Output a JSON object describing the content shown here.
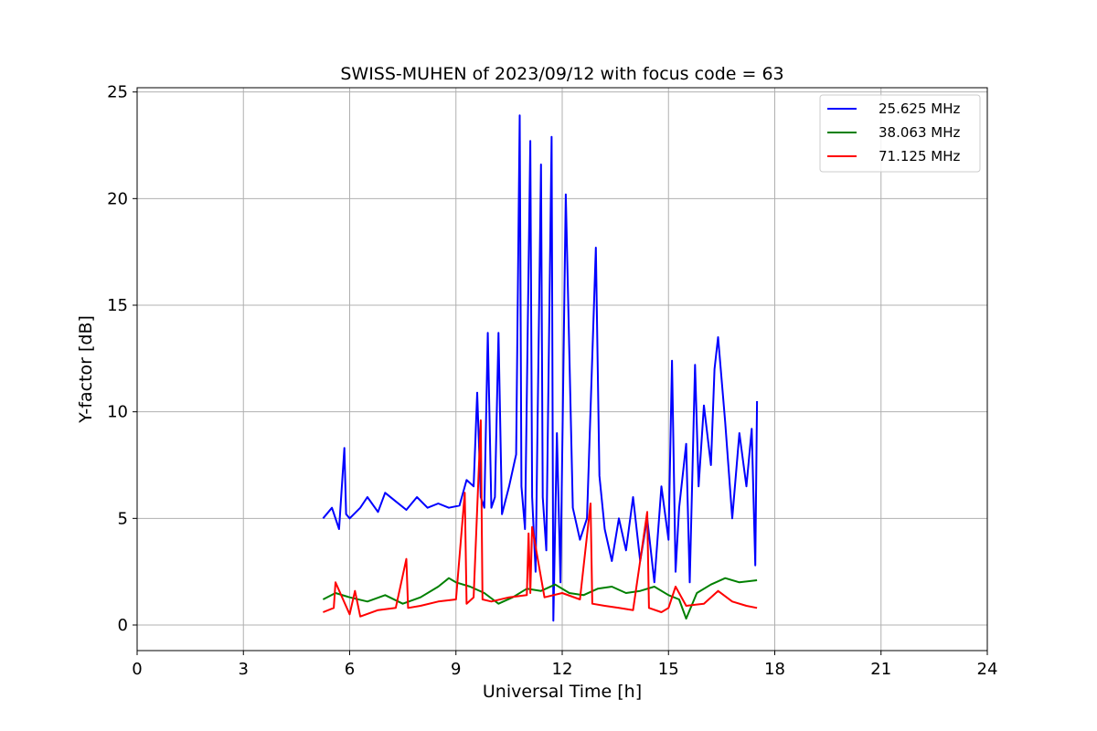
{
  "chart_data": {
    "type": "line",
    "title": "SWISS-MUHEN of 2023/09/12 with focus code = 63",
    "xlabel": "Universal Time [h]",
    "ylabel": "Y-factor [dB]",
    "xlim": [
      0,
      24
    ],
    "ylim": [
      -1.2,
      25.2
    ],
    "xticks": [
      0,
      3,
      6,
      9,
      12,
      15,
      18,
      21,
      24
    ],
    "yticks": [
      0,
      5,
      10,
      15,
      20,
      25
    ],
    "grid": true,
    "legend_position": "top-right",
    "series": [
      {
        "name": "25.625 MHz",
        "color": "#0000ff",
        "x": [
          5.25,
          5.5,
          5.7,
          5.85,
          5.9,
          6.0,
          6.3,
          6.5,
          6.8,
          7.0,
          7.3,
          7.6,
          7.9,
          8.2,
          8.5,
          8.8,
          9.1,
          9.3,
          9.5,
          9.6,
          9.7,
          9.8,
          9.9,
          10.0,
          10.1,
          10.2,
          10.3,
          10.5,
          10.7,
          10.8,
          10.85,
          10.95,
          11.1,
          11.15,
          11.25,
          11.4,
          11.45,
          11.55,
          11.7,
          11.75,
          11.85,
          11.95,
          12.1,
          12.3,
          12.5,
          12.7,
          12.95,
          13.05,
          13.2,
          13.4,
          13.6,
          13.8,
          14.0,
          14.2,
          14.4,
          14.6,
          14.8,
          15.0,
          15.1,
          15.2,
          15.3,
          15.5,
          15.6,
          15.75,
          15.85,
          16.0,
          16.2,
          16.3,
          16.4,
          16.6,
          16.8,
          17.0,
          17.2,
          17.35,
          17.45,
          17.5
        ],
        "values": [
          5.0,
          5.5,
          4.5,
          8.3,
          5.2,
          5.0,
          5.5,
          6.0,
          5.3,
          6.2,
          5.8,
          5.4,
          6.0,
          5.5,
          5.7,
          5.5,
          5.6,
          6.8,
          6.5,
          10.9,
          6.0,
          5.5,
          13.7,
          5.5,
          6.0,
          13.7,
          5.2,
          6.5,
          8.0,
          23.9,
          6.5,
          4.5,
          22.7,
          6.0,
          2.5,
          21.6,
          6.0,
          3.5,
          22.9,
          0.2,
          9.0,
          2.0,
          20.2,
          5.5,
          4.0,
          5.0,
          17.7,
          7.0,
          4.5,
          3.0,
          5.0,
          3.5,
          6.0,
          3.0,
          5.0,
          2.0,
          6.5,
          4.0,
          12.4,
          2.5,
          5.5,
          8.5,
          2.0,
          12.2,
          6.5,
          10.3,
          7.5,
          12.0,
          13.5,
          9.5,
          5.0,
          9.0,
          6.5,
          9.2,
          2.8,
          10.5
        ]
      },
      {
        "name": "38.063 MHz",
        "color": "#008000",
        "x": [
          5.25,
          5.6,
          6.0,
          6.5,
          7.0,
          7.5,
          8.0,
          8.5,
          8.8,
          9.0,
          9.4,
          9.8,
          10.2,
          10.6,
          11.0,
          11.4,
          11.8,
          12.2,
          12.6,
          13.0,
          13.4,
          13.8,
          14.2,
          14.6,
          15.0,
          15.3,
          15.5,
          15.8,
          16.2,
          16.6,
          17.0,
          17.5
        ],
        "values": [
          1.2,
          1.5,
          1.3,
          1.1,
          1.4,
          1.0,
          1.3,
          1.8,
          2.2,
          2.0,
          1.8,
          1.5,
          1.0,
          1.3,
          1.7,
          1.6,
          1.9,
          1.5,
          1.4,
          1.7,
          1.8,
          1.5,
          1.6,
          1.8,
          1.4,
          1.2,
          0.3,
          1.5,
          1.9,
          2.2,
          2.0,
          2.1
        ]
      },
      {
        "name": "71.125 MHz",
        "color": "#ff0000",
        "x": [
          5.25,
          5.55,
          5.6,
          6.0,
          6.15,
          6.3,
          6.8,
          7.3,
          7.6,
          7.65,
          8.0,
          8.5,
          9.0,
          9.25,
          9.3,
          9.5,
          9.7,
          9.75,
          10.0,
          10.5,
          11.0,
          11.05,
          11.1,
          11.15,
          11.5,
          12.0,
          12.5,
          12.8,
          12.85,
          13.2,
          13.6,
          14.0,
          14.4,
          14.45,
          14.8,
          15.0,
          15.2,
          15.5,
          16.0,
          16.4,
          16.8,
          17.2,
          17.5
        ],
        "values": [
          0.6,
          0.8,
          2.0,
          0.5,
          1.6,
          0.4,
          0.7,
          0.8,
          3.1,
          0.8,
          0.9,
          1.1,
          1.2,
          6.2,
          1.0,
          1.3,
          9.6,
          1.2,
          1.1,
          1.3,
          1.4,
          4.3,
          1.5,
          4.6,
          1.3,
          1.5,
          1.2,
          5.7,
          1.0,
          0.9,
          0.8,
          0.7,
          5.3,
          0.8,
          0.6,
          0.8,
          1.8,
          0.9,
          1.0,
          1.6,
          1.1,
          0.9,
          0.8
        ]
      }
    ]
  }
}
